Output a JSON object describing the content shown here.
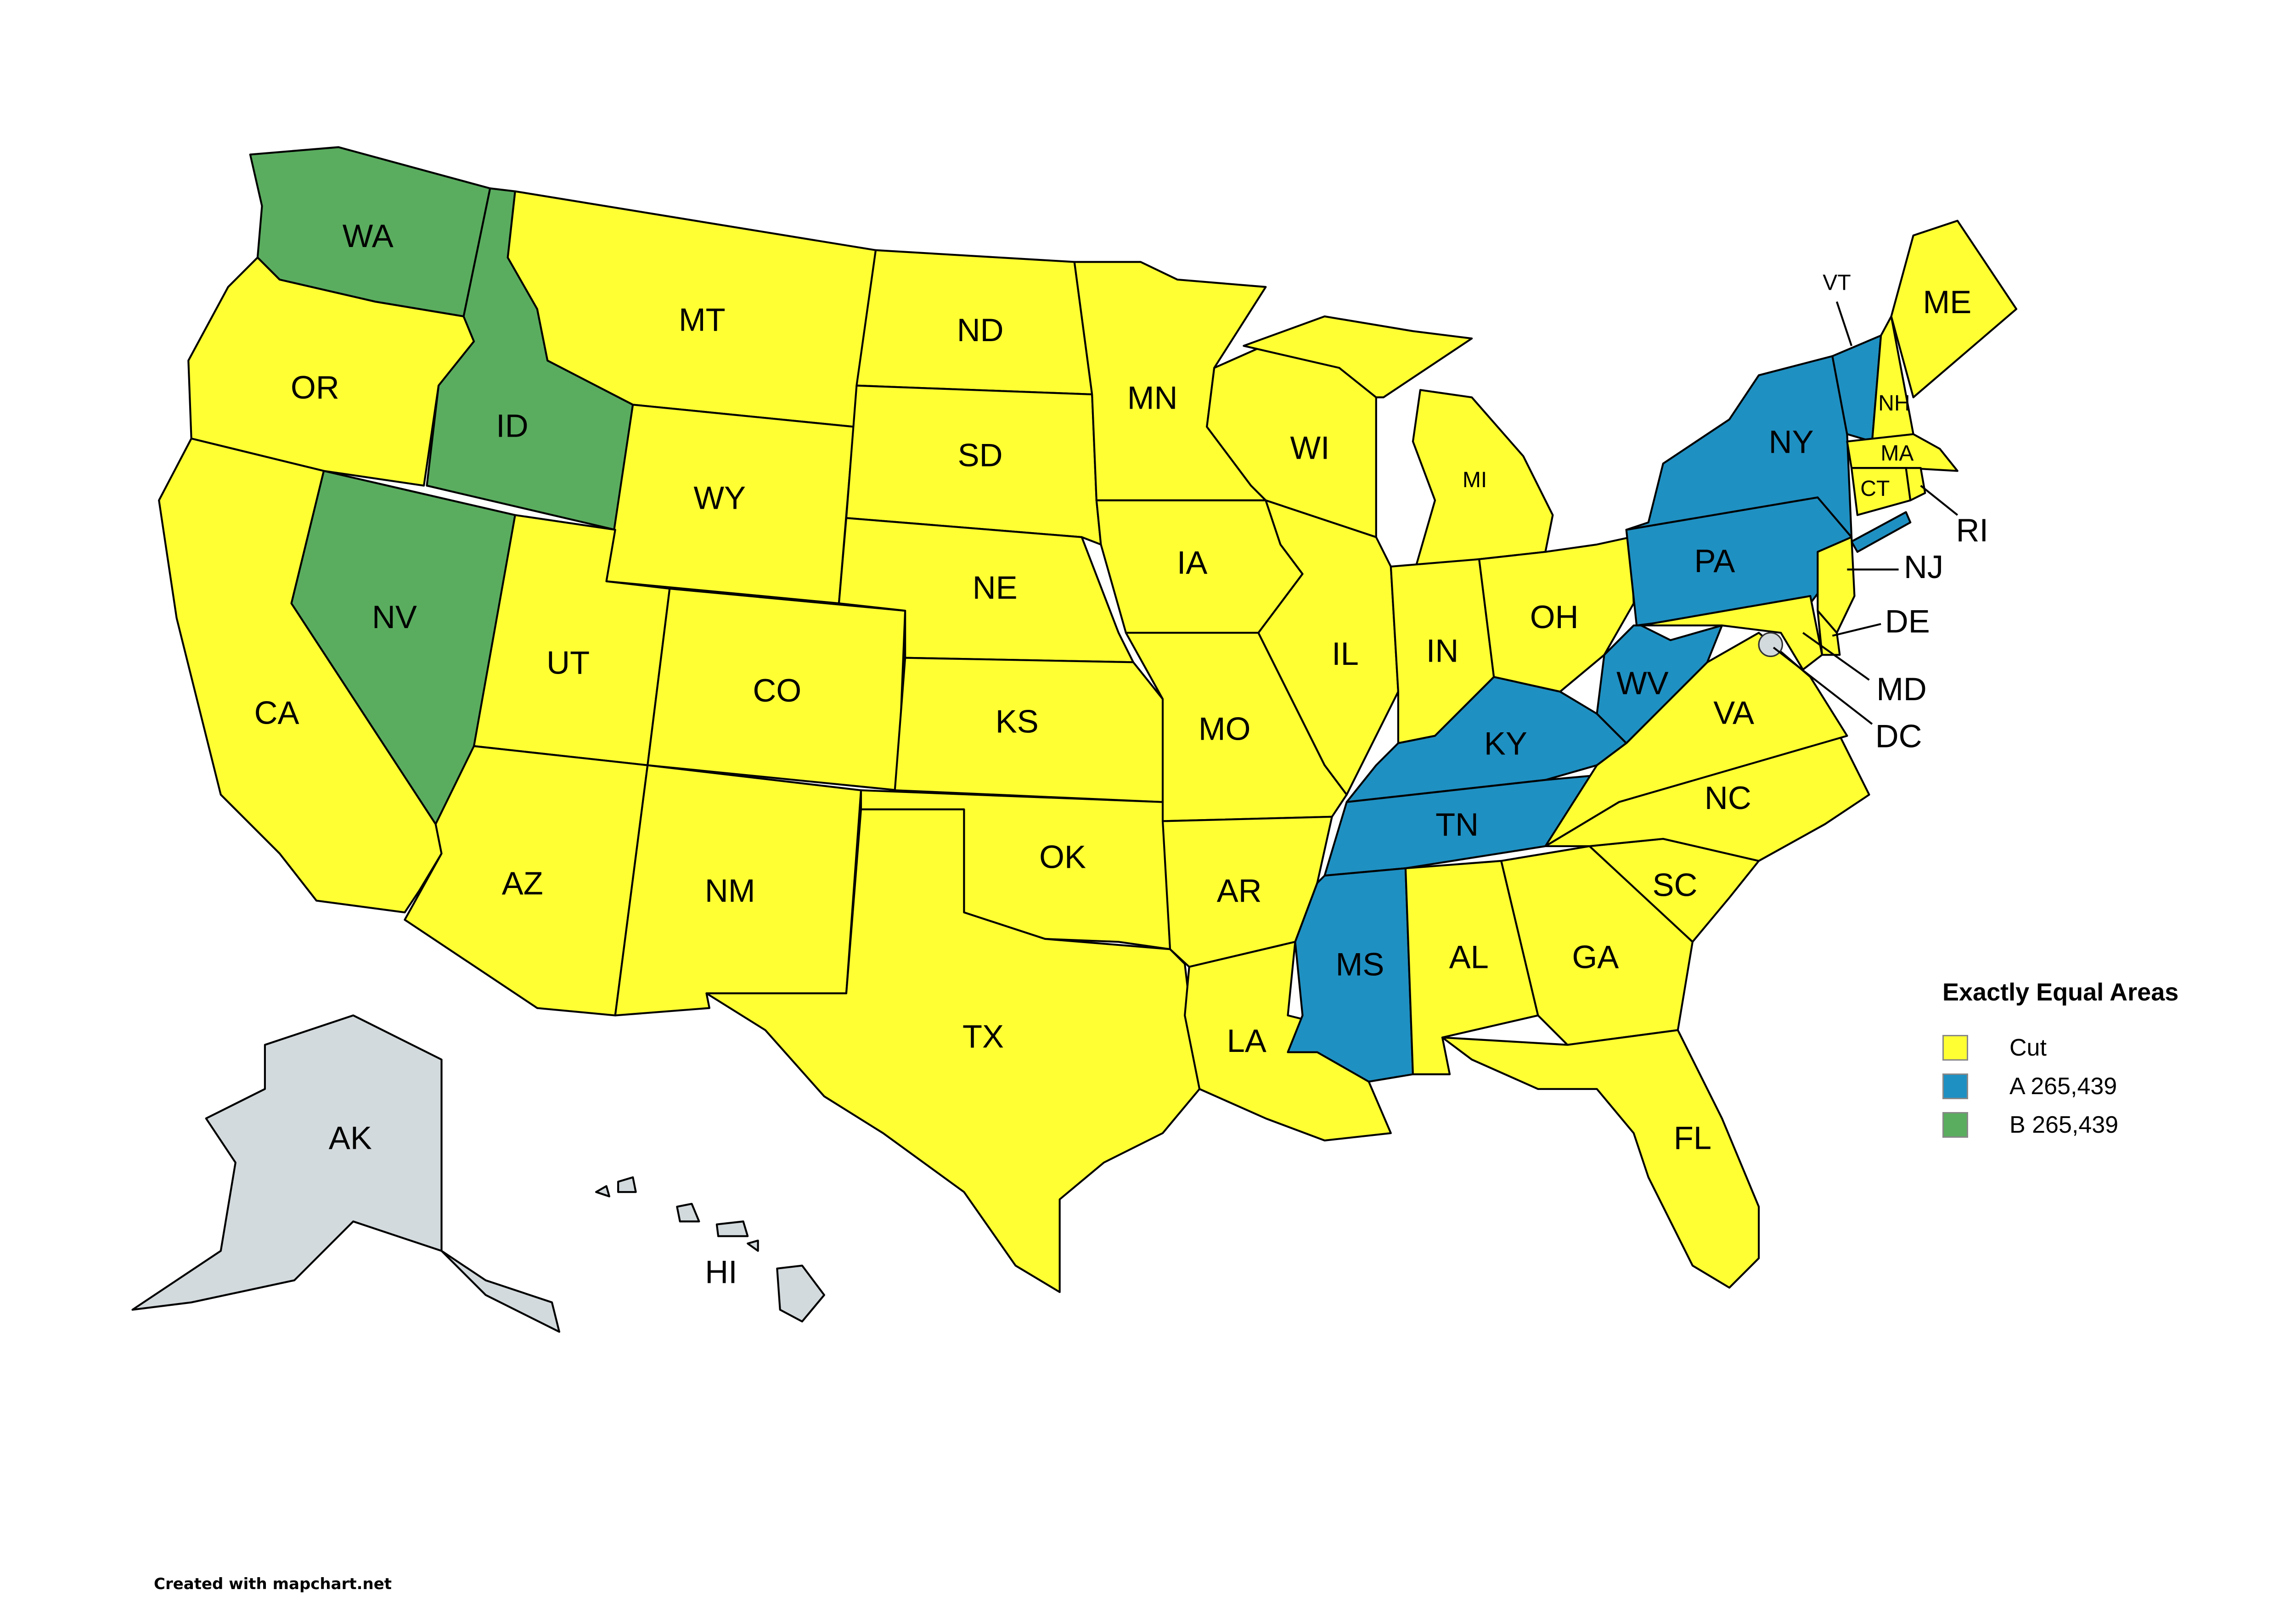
{
  "legend": {
    "title": "Exactly Equal Areas",
    "items": [
      {
        "label": "Cut",
        "color": "#ffff33"
      },
      {
        "label": "A 265,439",
        "color": "#1f90c2"
      },
      {
        "label": "B 265,439",
        "color": "#5aad5f"
      }
    ]
  },
  "unassigned_color": "#d3dadd",
  "credit": "Created with mapchart.net",
  "states": [
    {
      "abbr": "WA",
      "group": "B"
    },
    {
      "abbr": "OR",
      "group": "Cut"
    },
    {
      "abbr": "CA",
      "group": "Cut"
    },
    {
      "abbr": "NV",
      "group": "B"
    },
    {
      "abbr": "ID",
      "group": "B"
    },
    {
      "abbr": "MT",
      "group": "Cut"
    },
    {
      "abbr": "WY",
      "group": "Cut"
    },
    {
      "abbr": "UT",
      "group": "Cut"
    },
    {
      "abbr": "CO",
      "group": "Cut"
    },
    {
      "abbr": "AZ",
      "group": "Cut"
    },
    {
      "abbr": "NM",
      "group": "Cut"
    },
    {
      "abbr": "ND",
      "group": "Cut"
    },
    {
      "abbr": "SD",
      "group": "Cut"
    },
    {
      "abbr": "NE",
      "group": "Cut"
    },
    {
      "abbr": "KS",
      "group": "Cut"
    },
    {
      "abbr": "OK",
      "group": "Cut"
    },
    {
      "abbr": "TX",
      "group": "Cut"
    },
    {
      "abbr": "MN",
      "group": "Cut"
    },
    {
      "abbr": "IA",
      "group": "Cut"
    },
    {
      "abbr": "MO",
      "group": "Cut"
    },
    {
      "abbr": "AR",
      "group": "Cut"
    },
    {
      "abbr": "LA",
      "group": "Cut"
    },
    {
      "abbr": "WI",
      "group": "Cut"
    },
    {
      "abbr": "IL",
      "group": "Cut"
    },
    {
      "abbr": "MI",
      "group": "Cut"
    },
    {
      "abbr": "IN",
      "group": "Cut"
    },
    {
      "abbr": "OH",
      "group": "Cut"
    },
    {
      "abbr": "KY",
      "group": "A"
    },
    {
      "abbr": "TN",
      "group": "A"
    },
    {
      "abbr": "MS",
      "group": "A"
    },
    {
      "abbr": "AL",
      "group": "Cut"
    },
    {
      "abbr": "GA",
      "group": "Cut"
    },
    {
      "abbr": "FL",
      "group": "Cut"
    },
    {
      "abbr": "SC",
      "group": "Cut"
    },
    {
      "abbr": "NC",
      "group": "Cut"
    },
    {
      "abbr": "VA",
      "group": "Cut"
    },
    {
      "abbr": "WV",
      "group": "A"
    },
    {
      "abbr": "PA",
      "group": "A"
    },
    {
      "abbr": "NY",
      "group": "A"
    },
    {
      "abbr": "VT",
      "group": "A"
    },
    {
      "abbr": "NH",
      "group": "Cut"
    },
    {
      "abbr": "ME",
      "group": "Cut"
    },
    {
      "abbr": "MA",
      "group": "Cut"
    },
    {
      "abbr": "CT",
      "group": "Cut"
    },
    {
      "abbr": "RI",
      "group": "Cut"
    },
    {
      "abbr": "NJ",
      "group": "Cut"
    },
    {
      "abbr": "DE",
      "group": "Cut"
    },
    {
      "abbr": "MD",
      "group": "Cut"
    },
    {
      "abbr": "DC",
      "group": "none"
    },
    {
      "abbr": "AK",
      "group": "none"
    },
    {
      "abbr": "HI",
      "group": "none"
    }
  ]
}
